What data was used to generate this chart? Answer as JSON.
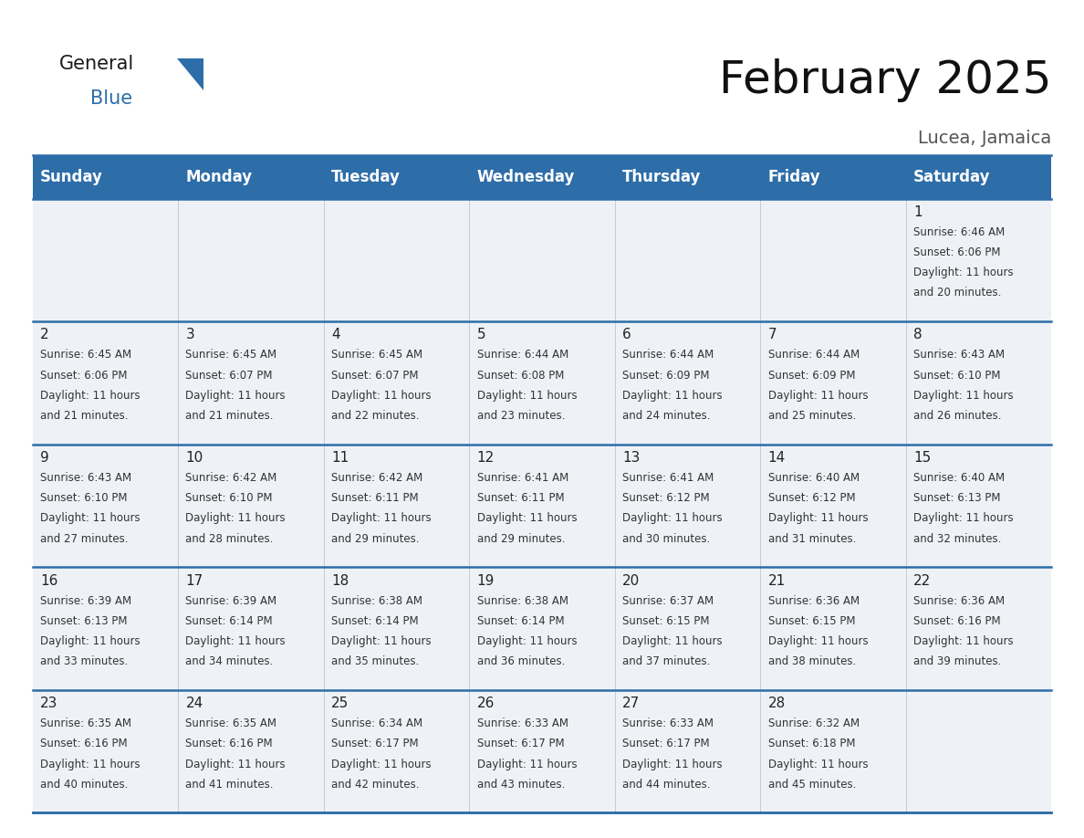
{
  "title": "February 2025",
  "subtitle": "Lucea, Jamaica",
  "header_bg_color": "#2d6da8",
  "header_text_color": "#ffffff",
  "border_color": "#2d6da8",
  "cell_bg_color": "#eef2f7",
  "days_of_week": [
    "Sunday",
    "Monday",
    "Tuesday",
    "Wednesday",
    "Thursday",
    "Friday",
    "Saturday"
  ],
  "weeks": [
    [
      {
        "day": null,
        "sunrise": null,
        "sunset": null,
        "daylight": null
      },
      {
        "day": null,
        "sunrise": null,
        "sunset": null,
        "daylight": null
      },
      {
        "day": null,
        "sunrise": null,
        "sunset": null,
        "daylight": null
      },
      {
        "day": null,
        "sunrise": null,
        "sunset": null,
        "daylight": null
      },
      {
        "day": null,
        "sunrise": null,
        "sunset": null,
        "daylight": null
      },
      {
        "day": null,
        "sunrise": null,
        "sunset": null,
        "daylight": null
      },
      {
        "day": 1,
        "sunrise": "6:46 AM",
        "sunset": "6:06 PM",
        "daylight": "11 hours and 20 minutes."
      }
    ],
    [
      {
        "day": 2,
        "sunrise": "6:45 AM",
        "sunset": "6:06 PM",
        "daylight": "11 hours and 21 minutes."
      },
      {
        "day": 3,
        "sunrise": "6:45 AM",
        "sunset": "6:07 PM",
        "daylight": "11 hours and 21 minutes."
      },
      {
        "day": 4,
        "sunrise": "6:45 AM",
        "sunset": "6:07 PM",
        "daylight": "11 hours and 22 minutes."
      },
      {
        "day": 5,
        "sunrise": "6:44 AM",
        "sunset": "6:08 PM",
        "daylight": "11 hours and 23 minutes."
      },
      {
        "day": 6,
        "sunrise": "6:44 AM",
        "sunset": "6:09 PM",
        "daylight": "11 hours and 24 minutes."
      },
      {
        "day": 7,
        "sunrise": "6:44 AM",
        "sunset": "6:09 PM",
        "daylight": "11 hours and 25 minutes."
      },
      {
        "day": 8,
        "sunrise": "6:43 AM",
        "sunset": "6:10 PM",
        "daylight": "11 hours and 26 minutes."
      }
    ],
    [
      {
        "day": 9,
        "sunrise": "6:43 AM",
        "sunset": "6:10 PM",
        "daylight": "11 hours and 27 minutes."
      },
      {
        "day": 10,
        "sunrise": "6:42 AM",
        "sunset": "6:10 PM",
        "daylight": "11 hours and 28 minutes."
      },
      {
        "day": 11,
        "sunrise": "6:42 AM",
        "sunset": "6:11 PM",
        "daylight": "11 hours and 29 minutes."
      },
      {
        "day": 12,
        "sunrise": "6:41 AM",
        "sunset": "6:11 PM",
        "daylight": "11 hours and 29 minutes."
      },
      {
        "day": 13,
        "sunrise": "6:41 AM",
        "sunset": "6:12 PM",
        "daylight": "11 hours and 30 minutes."
      },
      {
        "day": 14,
        "sunrise": "6:40 AM",
        "sunset": "6:12 PM",
        "daylight": "11 hours and 31 minutes."
      },
      {
        "day": 15,
        "sunrise": "6:40 AM",
        "sunset": "6:13 PM",
        "daylight": "11 hours and 32 minutes."
      }
    ],
    [
      {
        "day": 16,
        "sunrise": "6:39 AM",
        "sunset": "6:13 PM",
        "daylight": "11 hours and 33 minutes."
      },
      {
        "day": 17,
        "sunrise": "6:39 AM",
        "sunset": "6:14 PM",
        "daylight": "11 hours and 34 minutes."
      },
      {
        "day": 18,
        "sunrise": "6:38 AM",
        "sunset": "6:14 PM",
        "daylight": "11 hours and 35 minutes."
      },
      {
        "day": 19,
        "sunrise": "6:38 AM",
        "sunset": "6:14 PM",
        "daylight": "11 hours and 36 minutes."
      },
      {
        "day": 20,
        "sunrise": "6:37 AM",
        "sunset": "6:15 PM",
        "daylight": "11 hours and 37 minutes."
      },
      {
        "day": 21,
        "sunrise": "6:36 AM",
        "sunset": "6:15 PM",
        "daylight": "11 hours and 38 minutes."
      },
      {
        "day": 22,
        "sunrise": "6:36 AM",
        "sunset": "6:16 PM",
        "daylight": "11 hours and 39 minutes."
      }
    ],
    [
      {
        "day": 23,
        "sunrise": "6:35 AM",
        "sunset": "6:16 PM",
        "daylight": "11 hours and 40 minutes."
      },
      {
        "day": 24,
        "sunrise": "6:35 AM",
        "sunset": "6:16 PM",
        "daylight": "11 hours and 41 minutes."
      },
      {
        "day": 25,
        "sunrise": "6:34 AM",
        "sunset": "6:17 PM",
        "daylight": "11 hours and 42 minutes."
      },
      {
        "day": 26,
        "sunrise": "6:33 AM",
        "sunset": "6:17 PM",
        "daylight": "11 hours and 43 minutes."
      },
      {
        "day": 27,
        "sunrise": "6:33 AM",
        "sunset": "6:17 PM",
        "daylight": "11 hours and 44 minutes."
      },
      {
        "day": 28,
        "sunrise": "6:32 AM",
        "sunset": "6:18 PM",
        "daylight": "11 hours and 45 minutes."
      },
      {
        "day": null,
        "sunrise": null,
        "sunset": null,
        "daylight": null
      }
    ]
  ],
  "fig_width": 11.88,
  "fig_height": 9.18,
  "dpi": 100,
  "title_fontsize": 36,
  "subtitle_fontsize": 14,
  "header_fontsize": 12,
  "day_num_fontsize": 11,
  "info_fontsize": 8.5,
  "logo_general_fontsize": 15,
  "logo_blue_fontsize": 15
}
